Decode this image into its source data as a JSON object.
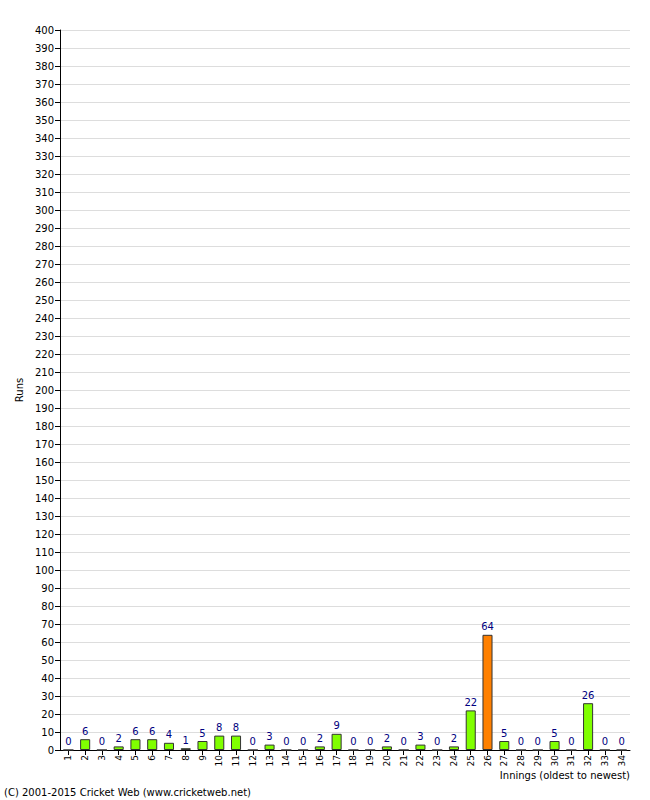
{
  "chart_data": {
    "type": "bar",
    "x_label": "Innings (oldest to newest)",
    "y_label": "Runs",
    "annotations": [
      "(C) 2001-2015 Cricket Web (www.cricketweb.net)"
    ],
    "categories": [
      "1",
      "2",
      "3",
      "4",
      "5",
      "6",
      "7",
      "8",
      "9",
      "10",
      "11",
      "12",
      "13",
      "14",
      "15",
      "16",
      "17",
      "18",
      "19",
      "20",
      "21",
      "22",
      "23",
      "24",
      "25",
      "26",
      "27",
      "28",
      "29",
      "30",
      "31",
      "32",
      "33",
      "34"
    ],
    "values": [
      0,
      6,
      0,
      2,
      6,
      6,
      4,
      1,
      5,
      8,
      8,
      0,
      3,
      0,
      0,
      2,
      9,
      0,
      0,
      2,
      0,
      3,
      0,
      2,
      22,
      64,
      5,
      0,
      0,
      5,
      0,
      26,
      0,
      0
    ],
    "colors": [
      "#80ff00",
      "#80ff00",
      "#80ff00",
      "#80ff00",
      "#80ff00",
      "#80ff00",
      "#80ff00",
      "#80ff00",
      "#80ff00",
      "#80ff00",
      "#80ff00",
      "#80ff00",
      "#80ff00",
      "#80ff00",
      "#80ff00",
      "#80ff00",
      "#80ff00",
      "#80ff00",
      "#80ff00",
      "#80ff00",
      "#80ff00",
      "#80ff00",
      "#80ff00",
      "#80ff00",
      "#80ff00",
      "#ff8000",
      "#80ff00",
      "#80ff00",
      "#80ff00",
      "#80ff00",
      "#80ff00",
      "#80ff00",
      "#80ff00",
      "#80ff00"
    ],
    "ylim": [
      0,
      400
    ],
    "yticks": [
      0,
      10,
      20,
      30,
      40,
      50,
      60,
      70,
      80,
      90,
      100,
      110,
      120,
      130,
      140,
      150,
      160,
      170,
      180,
      190,
      200,
      210,
      220,
      230,
      240,
      250,
      260,
      270,
      280,
      290,
      300,
      310,
      320,
      330,
      340,
      350,
      360,
      370,
      380,
      390,
      400
    ],
    "grid": true,
    "data_labels": true
  }
}
